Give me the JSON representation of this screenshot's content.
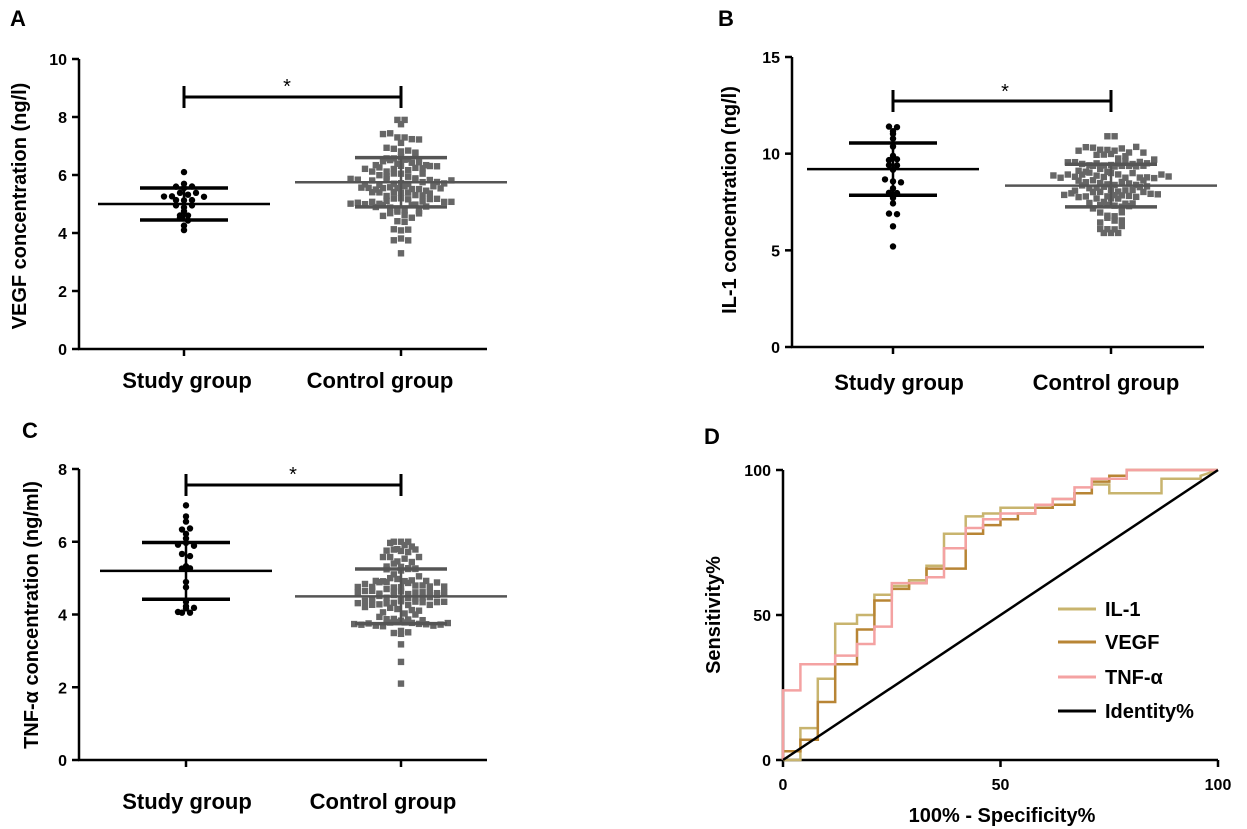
{
  "panels": [
    {
      "id": "A",
      "letter": "A",
      "ylabel": "VEGF concentration (ng/l)",
      "ylim": [
        0,
        10
      ],
      "yticks": [
        "0",
        "2",
        "4",
        "6",
        "8",
        "10"
      ],
      "categories": [
        "Study group",
        "Control group"
      ],
      "significance": "*"
    },
    {
      "id": "B",
      "letter": "B",
      "ylabel": "IL-1 concentration (ng/l)",
      "ylim": [
        0,
        15
      ],
      "yticks": [
        "0",
        "5",
        "10",
        "15"
      ],
      "categories": [
        "Study group",
        "Control group"
      ],
      "significance": "*"
    },
    {
      "id": "C",
      "letter": "C",
      "ylabel": "TNF-α concentration (ng/ml)",
      "ylim": [
        0,
        8
      ],
      "yticks": [
        "0",
        "2",
        "4",
        "6",
        "8"
      ],
      "categories": [
        "Study group",
        "Control group"
      ],
      "significance": "*"
    },
    {
      "id": "D",
      "letter": "D",
      "xlabel": "100% - Specificity%",
      "ylabel": "Sensitivity%",
      "xticks": [
        "0",
        "50",
        "100"
      ],
      "yticks": [
        "0",
        "50",
        "100"
      ],
      "legend": [
        "IL-1",
        "VEGF",
        "TNF-α",
        "Identity%"
      ]
    }
  ],
  "chart_data": [
    {
      "type": "scatter",
      "panel": "A",
      "ylabel": "VEGF concentration (ng/l)",
      "ylim": [
        0,
        10
      ],
      "categories": [
        "Study group",
        "Control group"
      ],
      "series": [
        {
          "name": "Study group",
          "mean": 5.0,
          "sd": 0.55,
          "n": 24,
          "min": 4.1,
          "max": 6.1,
          "color": "#000000",
          "marker": "circle"
        },
        {
          "name": "Control group",
          "mean": 5.75,
          "sd": 0.85,
          "n": 120,
          "min": 3.3,
          "max": 7.9,
          "color": "#666666",
          "marker": "square"
        }
      ],
      "significance": "*"
    },
    {
      "type": "scatter",
      "panel": "B",
      "ylabel": "IL-1 concentration (ng/l)",
      "ylim": [
        0,
        15
      ],
      "categories": [
        "Study group",
        "Control group"
      ],
      "series": [
        {
          "name": "Study group",
          "mean": 9.2,
          "sd": 1.35,
          "n": 24,
          "min": 5.2,
          "max": 11.4,
          "color": "#000000",
          "marker": "circle"
        },
        {
          "name": "Control group",
          "mean": 8.35,
          "sd": 1.1,
          "n": 120,
          "min": 5.9,
          "max": 10.9,
          "color": "#666666",
          "marker": "square"
        }
      ],
      "significance": "*"
    },
    {
      "type": "scatter",
      "panel": "C",
      "ylabel": "TNF-α concentration (ng/ml)",
      "ylim": [
        0,
        8
      ],
      "categories": [
        "Study group",
        "Control group"
      ],
      "series": [
        {
          "name": "Study group",
          "mean": 5.2,
          "sd": 0.78,
          "n": 24,
          "min": 4.05,
          "max": 7.0,
          "color": "#000000",
          "marker": "circle"
        },
        {
          "name": "Control group",
          "mean": 4.5,
          "sd": 0.75,
          "n": 120,
          "min": 2.1,
          "max": 6.0,
          "color": "#666666",
          "marker": "square"
        }
      ],
      "significance": "*"
    },
    {
      "type": "line",
      "panel": "D",
      "xlabel": "100% - Specificity%",
      "ylabel": "Sensitivity%",
      "xlim": [
        0,
        100
      ],
      "ylim": [
        0,
        100
      ],
      "series": [
        {
          "name": "IL-1",
          "color": "#c8b46e",
          "points": [
            [
              0,
              0
            ],
            [
              4,
              0
            ],
            [
              4,
              11
            ],
            [
              8,
              11
            ],
            [
              8,
              28
            ],
            [
              12,
              28
            ],
            [
              12,
              47
            ],
            [
              17,
              47
            ],
            [
              17,
              50
            ],
            [
              21,
              50
            ],
            [
              21,
              57
            ],
            [
              25,
              57
            ],
            [
              25,
              60
            ],
            [
              29,
              60
            ],
            [
              29,
              62
            ],
            [
              33,
              62
            ],
            [
              33,
              67
            ],
            [
              37,
              67
            ],
            [
              37,
              78
            ],
            [
              42,
              78
            ],
            [
              42,
              84
            ],
            [
              46,
              84
            ],
            [
              46,
              85
            ],
            [
              50,
              85
            ],
            [
              50,
              87
            ],
            [
              58,
              87
            ],
            [
              58,
              88
            ],
            [
              62,
              88
            ],
            [
              62,
              90
            ],
            [
              67,
              90
            ],
            [
              67,
              92
            ],
            [
              71,
              92
            ],
            [
              71,
              95
            ],
            [
              75,
              95
            ],
            [
              75,
              92
            ],
            [
              87,
              92
            ],
            [
              87,
              97
            ],
            [
              96,
              97
            ],
            [
              96,
              98
            ],
            [
              100,
              100
            ]
          ]
        },
        {
          "name": "VEGF",
          "color": "#b88535",
          "points": [
            [
              0,
              0
            ],
            [
              0,
              3
            ],
            [
              4,
              3
            ],
            [
              4,
              7
            ],
            [
              8,
              7
            ],
            [
              8,
              20
            ],
            [
              12,
              20
            ],
            [
              12,
              33
            ],
            [
              17,
              33
            ],
            [
              17,
              45
            ],
            [
              21,
              45
            ],
            [
              21,
              55
            ],
            [
              25,
              55
            ],
            [
              25,
              59
            ],
            [
              29,
              59
            ],
            [
              29,
              61
            ],
            [
              33,
              61
            ],
            [
              33,
              66
            ],
            [
              42,
              66
            ],
            [
              42,
              78
            ],
            [
              46,
              78
            ],
            [
              46,
              81
            ],
            [
              50,
              81
            ],
            [
              50,
              83
            ],
            [
              54,
              83
            ],
            [
              54,
              85
            ],
            [
              58,
              85
            ],
            [
              58,
              87
            ],
            [
              62,
              87
            ],
            [
              62,
              88
            ],
            [
              67,
              88
            ],
            [
              67,
              92
            ],
            [
              71,
              92
            ],
            [
              71,
              96
            ],
            [
              75,
              96
            ],
            [
              75,
              98
            ],
            [
              79,
              98
            ],
            [
              79,
              100
            ],
            [
              100,
              100
            ]
          ]
        },
        {
          "name": "TNF-α",
          "color": "#f4a2a2",
          "points": [
            [
              0,
              0
            ],
            [
              0,
              24
            ],
            [
              4,
              24
            ],
            [
              4,
              33
            ],
            [
              12,
              33
            ],
            [
              12,
              36
            ],
            [
              17,
              36
            ],
            [
              17,
              40
            ],
            [
              21,
              40
            ],
            [
              21,
              46
            ],
            [
              25,
              46
            ],
            [
              25,
              61
            ],
            [
              33,
              61
            ],
            [
              33,
              63
            ],
            [
              37,
              63
            ],
            [
              37,
              73
            ],
            [
              42,
              73
            ],
            [
              42,
              80
            ],
            [
              46,
              80
            ],
            [
              46,
              83
            ],
            [
              50,
              83
            ],
            [
              50,
              85
            ],
            [
              58,
              85
            ],
            [
              58,
              88
            ],
            [
              62,
              88
            ],
            [
              62,
              90
            ],
            [
              67,
              90
            ],
            [
              67,
              94
            ],
            [
              71,
              94
            ],
            [
              71,
              97
            ],
            [
              79,
              97
            ],
            [
              79,
              100
            ],
            [
              100,
              100
            ]
          ]
        },
        {
          "name": "Identity%",
          "color": "#000000",
          "points": [
            [
              0,
              0
            ],
            [
              100,
              100
            ]
          ]
        }
      ]
    }
  ]
}
